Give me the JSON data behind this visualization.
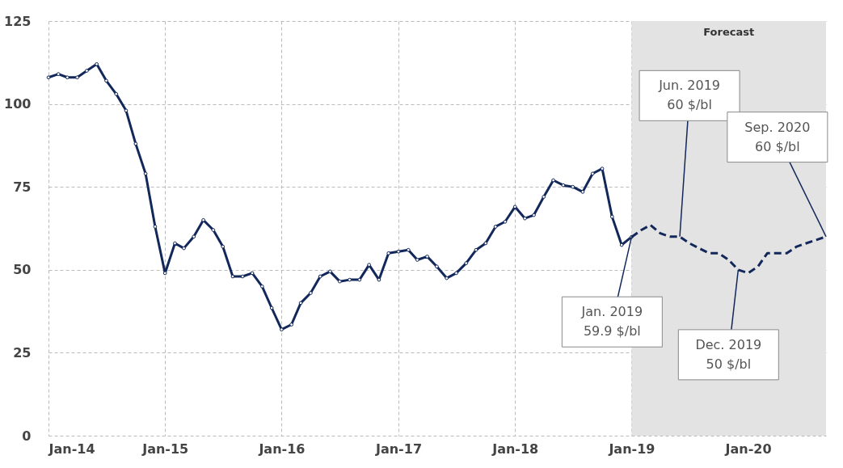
{
  "chart_data": {
    "type": "line",
    "xlim": [
      "2014-01",
      "2020-09"
    ],
    "xticks": [
      {
        "value": "2014-01",
        "label": "Jan-14"
      },
      {
        "value": "2015-01",
        "label": "Jan-15"
      },
      {
        "value": "2016-01",
        "label": "Jan-16"
      },
      {
        "value": "2017-01",
        "label": "Jan-17"
      },
      {
        "value": "2018-01",
        "label": "Jan-18"
      },
      {
        "value": "2019-01",
        "label": "Jan-19"
      },
      {
        "value": "2020-01",
        "label": "Jan-20"
      }
    ],
    "ylim": [
      0,
      125
    ],
    "yticks": [
      0,
      25,
      50,
      75,
      100,
      125
    ],
    "grid": true,
    "series": [
      {
        "color": "#13285a",
        "marker": "circle",
        "line_style": "solid",
        "x": [
          "2014-01",
          "2014-02",
          "2014-03",
          "2014-04",
          "2014-05",
          "2014-06",
          "2014-07",
          "2014-08",
          "2014-09",
          "2014-10",
          "2014-11",
          "2014-12",
          "2015-01",
          "2015-02",
          "2015-03",
          "2015-04",
          "2015-05",
          "2015-06",
          "2015-07",
          "2015-08",
          "2015-09",
          "2015-10",
          "2015-11",
          "2015-12",
          "2016-01",
          "2016-02",
          "2016-03",
          "2016-04",
          "2016-05",
          "2016-06",
          "2016-07",
          "2016-08",
          "2016-09",
          "2016-10",
          "2016-11",
          "2016-12",
          "2017-01",
          "2017-02",
          "2017-03",
          "2017-04",
          "2017-05",
          "2017-06",
          "2017-07",
          "2017-08",
          "2017-09",
          "2017-10",
          "2017-11",
          "2017-12",
          "2018-01",
          "2018-02",
          "2018-03",
          "2018-04",
          "2018-05",
          "2018-06",
          "2018-07",
          "2018-08",
          "2018-09",
          "2018-10",
          "2018-11",
          "2018-12",
          "2019-01"
        ],
        "values": [
          108,
          109,
          108,
          108,
          110,
          112,
          107,
          103,
          98,
          88,
          79,
          63,
          49,
          58,
          56.5,
          60,
          65,
          62,
          57,
          48,
          48,
          49,
          45,
          38.5,
          32,
          33.5,
          40,
          43,
          48,
          49.5,
          46.5,
          47,
          47,
          51.5,
          47,
          55,
          55.5,
          56,
          53,
          54,
          51,
          47.5,
          49,
          52,
          56,
          58,
          63,
          64.5,
          69,
          65.5,
          66.5,
          72,
          77,
          75.5,
          75,
          73.5,
          79,
          80.5,
          66,
          57.5,
          59.9
        ]
      },
      {
        "color": "#13285a",
        "marker": "none",
        "line_style": "dashed",
        "x": [
          "2019-01",
          "2019-02",
          "2019-03",
          "2019-04",
          "2019-05",
          "2019-06",
          "2019-07",
          "2019-08",
          "2019-09",
          "2019-10",
          "2019-11",
          "2019-12",
          "2020-01",
          "2020-02",
          "2020-03",
          "2020-04",
          "2020-05",
          "2020-06",
          "2020-07",
          "2020-08",
          "2020-09"
        ],
        "values": [
          59.9,
          62,
          63.5,
          61,
          60,
          60,
          58,
          56.5,
          55,
          55,
          53,
          50,
          49,
          51,
          55,
          55,
          55,
          57,
          58,
          59,
          60
        ]
      }
    ],
    "bands": [
      {
        "axis": "x",
        "from": "2019-01",
        "to": "2020-09",
        "label": "Forecast",
        "color": "#e3e3e3"
      }
    ],
    "annotations": [
      {
        "text": "Jun. 2019\n60 $/bl",
        "x": "2019-06",
        "y": 60
      },
      {
        "text": "Sep. 2020\n60 $/bl",
        "x": "2020-09",
        "y": 60
      },
      {
        "text": "Jan. 2019\n59.9 $/bl",
        "x": "2019-01",
        "y": 59.9
      },
      {
        "text": "Dec. 2019\n50 $/bl",
        "x": "2019-12",
        "y": 50
      }
    ]
  }
}
